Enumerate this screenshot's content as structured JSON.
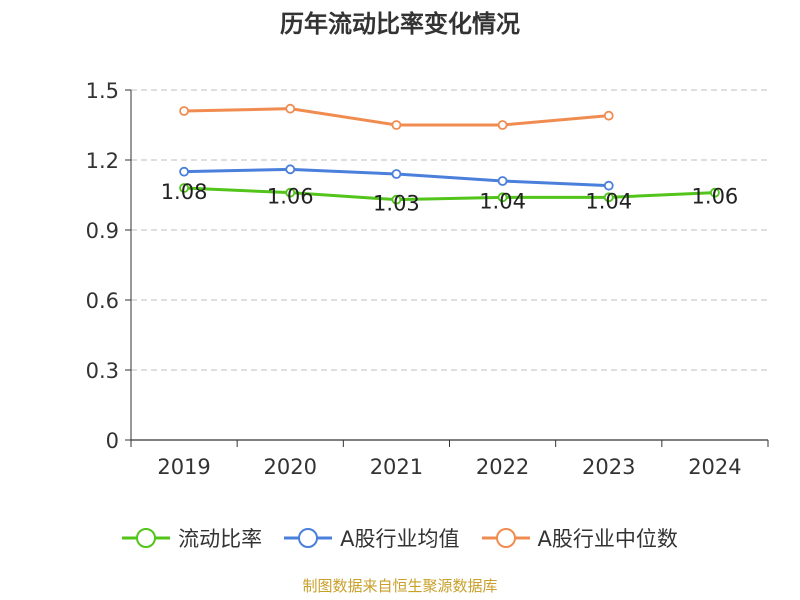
{
  "chart_data": {
    "type": "line",
    "title": "历年流动比率变化情况",
    "categories": [
      "2019",
      "2020",
      "2021",
      "2022",
      "2023",
      "2024"
    ],
    "y_ticks": [
      "0",
      "0.3",
      "0.6",
      "0.9",
      "1.2",
      "1.5"
    ],
    "ylim": [
      0,
      1.5
    ],
    "grid": true,
    "legend_position": "bottom",
    "series": [
      {
        "name": "流动比率",
        "color": "#52c41a",
        "values": [
          1.08,
          1.06,
          1.03,
          1.04,
          1.04,
          1.06
        ],
        "labels": [
          "1.08",
          "1.06",
          "1.03",
          "1.04",
          "1.04",
          "1.06"
        ]
      },
      {
        "name": "A股行业均值",
        "color": "#4a7fdc",
        "values": [
          1.15,
          1.16,
          1.14,
          1.11,
          1.09,
          null
        ]
      },
      {
        "name": "A股行业中位数",
        "color": "#f08c50",
        "values": [
          1.41,
          1.42,
          1.35,
          1.35,
          1.39,
          null
        ]
      }
    ]
  },
  "source_text": "制图数据来自恒生聚源数据库"
}
